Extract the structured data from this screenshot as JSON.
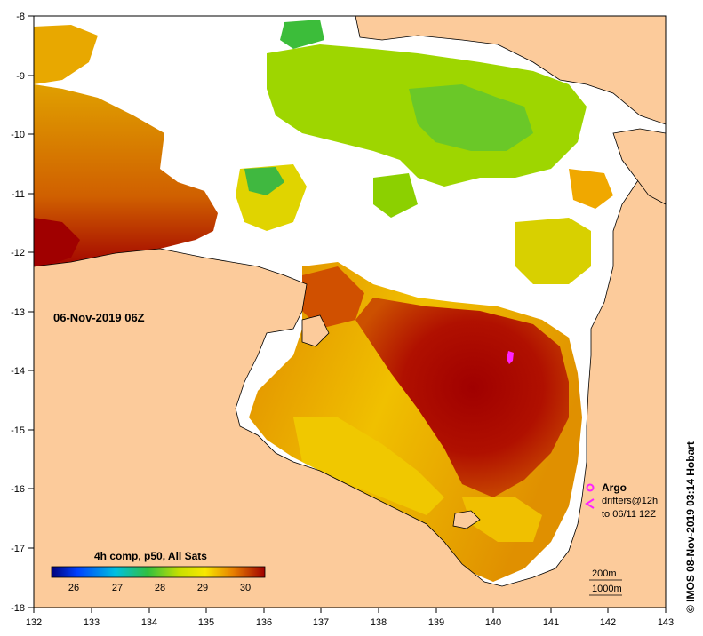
{
  "date_label": "06-Nov-2019 06Z",
  "colorbar": {
    "title": "4h comp, p50, All Sats",
    "ticks": [
      "26",
      "27",
      "28",
      "29",
      "30"
    ],
    "tick_values": [
      26,
      27,
      28,
      29,
      30
    ],
    "range": [
      25.6,
      30.4
    ]
  },
  "x_axis": {
    "ticks": [
      "132",
      "133",
      "134",
      "135",
      "136",
      "137",
      "138",
      "139",
      "140",
      "141",
      "142",
      "143"
    ],
    "range": [
      132,
      143
    ]
  },
  "y_axis": {
    "ticks": [
      "-8",
      "-9",
      "-10",
      "-11",
      "-12",
      "-13",
      "-14",
      "-15",
      "-16",
      "-17",
      "-18"
    ],
    "range": [
      -18,
      -8
    ]
  },
  "legend": {
    "argo": "Argo",
    "drifters_line1": "drifters@12h",
    "drifters_line2": "to 06/11 12Z"
  },
  "scale": {
    "line1": "200m",
    "line2": "1000m"
  },
  "credit": "© IMOS 08-Nov-2019 03:14 Hobart",
  "colors": {
    "land": "#fccb9b",
    "cloud": "#ffffff",
    "sst_hot": "#a00000",
    "sst_warm": "#e07c00",
    "sst_mid": "#f7c800",
    "sst_cool": "#8fd400",
    "sst_cold": "#24b040",
    "marker": "#ff22ff"
  }
}
